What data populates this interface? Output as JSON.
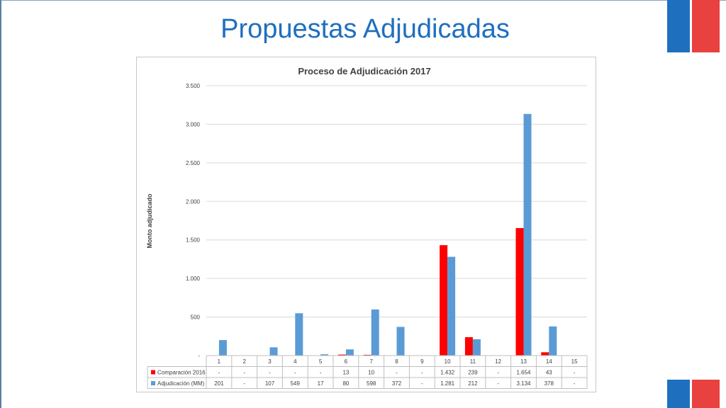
{
  "slide": {
    "title": "Propuestas Adjudicadas"
  },
  "colors": {
    "title": "#1f6fbf",
    "series_red": "#ff0000",
    "series_blue": "#5b9bd5",
    "flag_blue": "#1f6fbf",
    "flag_red": "#e8413f"
  },
  "chart_data": {
    "type": "bar",
    "title": "Proceso de Adjudicación 2017",
    "ylabel": "Monto adjudicado",
    "xlabel": "",
    "ylim": [
      0,
      3500
    ],
    "yticks": [
      "-",
      "500",
      "1.000",
      "1.500",
      "2.000",
      "2.500",
      "3.000",
      "3.500"
    ],
    "grid": true,
    "legend": "data-table",
    "categories": [
      "1",
      "2",
      "3",
      "4",
      "5",
      "6",
      "7",
      "8",
      "9",
      "10",
      "11",
      "12",
      "13",
      "14",
      "15"
    ],
    "series": [
      {
        "name": "Comparación 2016",
        "color": "#ff0000",
        "values": [
          null,
          null,
          null,
          null,
          null,
          13,
          10,
          null,
          null,
          1432,
          239,
          null,
          1654,
          43,
          null
        ],
        "labels": [
          "-",
          "-",
          "-",
          "-",
          "-",
          "13",
          "10",
          "-",
          "-",
          "1.432",
          "239",
          "-",
          "1.654",
          "43",
          "-"
        ]
      },
      {
        "name": "Adjudicación (MM)",
        "color": "#5b9bd5",
        "values": [
          201,
          null,
          107,
          549,
          17,
          80,
          598,
          372,
          null,
          1281,
          212,
          null,
          3134,
          378,
          null
        ],
        "labels": [
          "201",
          "-",
          "107",
          "549",
          "17",
          "80",
          "598",
          "372",
          "-",
          "1.281",
          "212",
          "-",
          "3.134",
          "378",
          "-"
        ]
      }
    ]
  }
}
